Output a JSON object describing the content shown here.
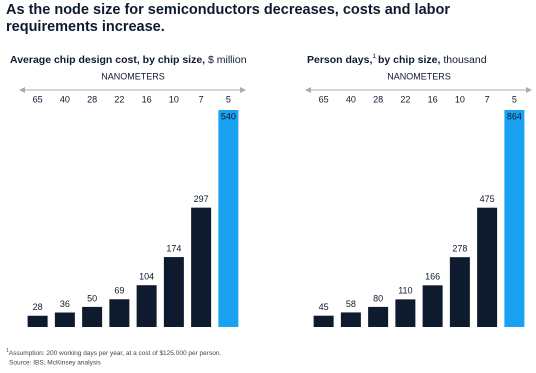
{
  "title": "As the node size for semiconductors decreases, costs and labor requirements increase.",
  "footnote_marker": "1",
  "footnote": "Assumption: 200 working days per year, at a cost of $125,000 per person.",
  "source": "Source: IBS; McKinsey analysis",
  "chart_data": [
    {
      "type": "bar",
      "title": "Average chip design cost, by chip size,",
      "unit": "$ million",
      "x_label": "NANOMETERS",
      "categories": [
        "65",
        "40",
        "28",
        "22",
        "16",
        "10",
        "7",
        "5"
      ],
      "values": [
        28,
        36,
        50,
        69,
        104,
        174,
        297,
        540
      ],
      "colors": [
        "#0e1a2e",
        "#0e1a2e",
        "#0e1a2e",
        "#0e1a2e",
        "#0e1a2e",
        "#0e1a2e",
        "#0e1a2e",
        "#1ba1f1"
      ]
    },
    {
      "type": "bar",
      "title": "Person days,",
      "title_marker": "1",
      "title_end": "by chip size,",
      "unit": "thousand",
      "x_label": "NANOMETERS",
      "categories": [
        "65",
        "40",
        "28",
        "22",
        "16",
        "10",
        "7",
        "5"
      ],
      "values": [
        45,
        58,
        80,
        110,
        166,
        278,
        475,
        864
      ],
      "colors": [
        "#0e1a2e",
        "#0e1a2e",
        "#0e1a2e",
        "#0e1a2e",
        "#0e1a2e",
        "#0e1a2e",
        "#0e1a2e",
        "#1ba1f1"
      ]
    }
  ]
}
